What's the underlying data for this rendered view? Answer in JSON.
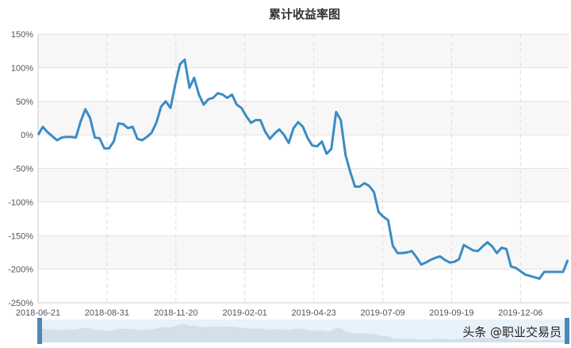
{
  "chart_data": {
    "type": "line",
    "title": "累计收益率图",
    "xlabel": "",
    "ylabel": "",
    "x_tick_labels": [
      "2018-06-21",
      "2018-08-31",
      "2018-11-20",
      "2019-02-01",
      "2019-04-23",
      "2019-07-09",
      "2019-09-19",
      "2019-12-06"
    ],
    "y_tick_labels": [
      "150%",
      "100%",
      "50%",
      "0%",
      "-50%",
      "-100%",
      "-150%",
      "-200%",
      "-250%"
    ],
    "ylim": [
      -250,
      150
    ],
    "y_unit": "%",
    "grid": true,
    "line_color": "#3a8cc4",
    "values": [
      0,
      12,
      4,
      -2,
      -8,
      -4,
      -3,
      -3,
      -4,
      20,
      38,
      25,
      -4,
      -5,
      -20,
      -20,
      -10,
      17,
      16,
      10,
      12,
      -6,
      -8,
      -3,
      3,
      18,
      42,
      50,
      40,
      75,
      105,
      112,
      70,
      85,
      60,
      45,
      53,
      55,
      62,
      60,
      55,
      60,
      45,
      40,
      28,
      18,
      22,
      22,
      5,
      -6,
      2,
      8,
      0,
      -12,
      10,
      19,
      12,
      -5,
      -16,
      -17,
      -10,
      -28,
      -21,
      34,
      22,
      -30,
      -55,
      -77,
      -77,
      -72,
      -76,
      -85,
      -115,
      -122,
      -127,
      -165,
      -176,
      -176,
      -175,
      -173,
      -182,
      -193,
      -190,
      -186,
      -183,
      -181,
      -186,
      -190,
      -189,
      -185,
      -164,
      -168,
      -172,
      -173,
      -166,
      -160,
      -166,
      -176,
      -168,
      -170,
      -196,
      -198,
      -203,
      -208,
      -210,
      -212,
      -214,
      -204,
      -204,
      -204,
      -204,
      -204,
      -186
    ]
  },
  "watermark": "头条 @职业交易员"
}
